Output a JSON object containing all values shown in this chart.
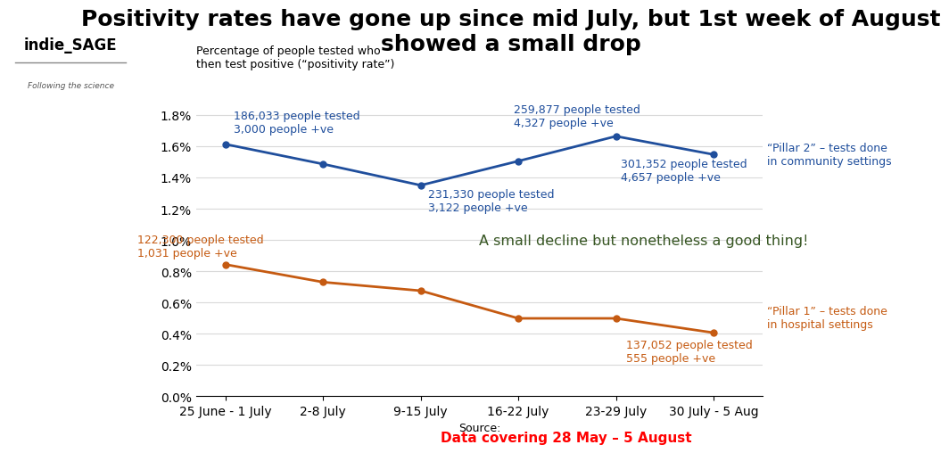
{
  "title": "Positivity rates have gone up since mid July, but 1st week of August\nshowed a small drop",
  "ylabel": "Percentage of people tested who\nthen test positive (“positivity rate”)",
  "xlabel": "Source:",
  "categories": [
    "25 June - 1 July",
    "2-8 July",
    "9-15 July",
    "16-22 July",
    "23-29 July",
    "30 July - 5 Aug"
  ],
  "pillar2_values": [
    1.613,
    1.486,
    1.35,
    1.505,
    1.664,
    1.547
  ],
  "pillar1_values": [
    0.843,
    0.73,
    0.675,
    0.498,
    0.498,
    0.406
  ],
  "pillar2_color": "#1f4e9c",
  "pillar1_color": "#c55a11",
  "background_color": "#ffffff",
  "ytick_labels": [
    "0.0%",
    "0.2%",
    "0.4%",
    "0.6%",
    "0.8%",
    "1.0%",
    "1.2%",
    "1.4%",
    "1.6%",
    "1.8%"
  ],
  "pillar2_label_plain": "“Pillar 2” – tests done\nin ",
  "pillar2_label_bold": "community",
  "pillar2_label_end": " settings",
  "pillar1_label_plain": "“Pillar 1” – tests done\nin ",
  "pillar1_label_bold": "hospital",
  "pillar1_label_end": " settings",
  "good_news_text": "A small decline but nonetheless a good thing!",
  "good_news_color": "#375623",
  "footer_text": "Data covering 28 May – 5 August",
  "footer_color": "#ff0000",
  "grid_color": "#d9d9d9",
  "title_fontsize": 18,
  "tick_fontsize": 10,
  "annot_fontsize": 9
}
